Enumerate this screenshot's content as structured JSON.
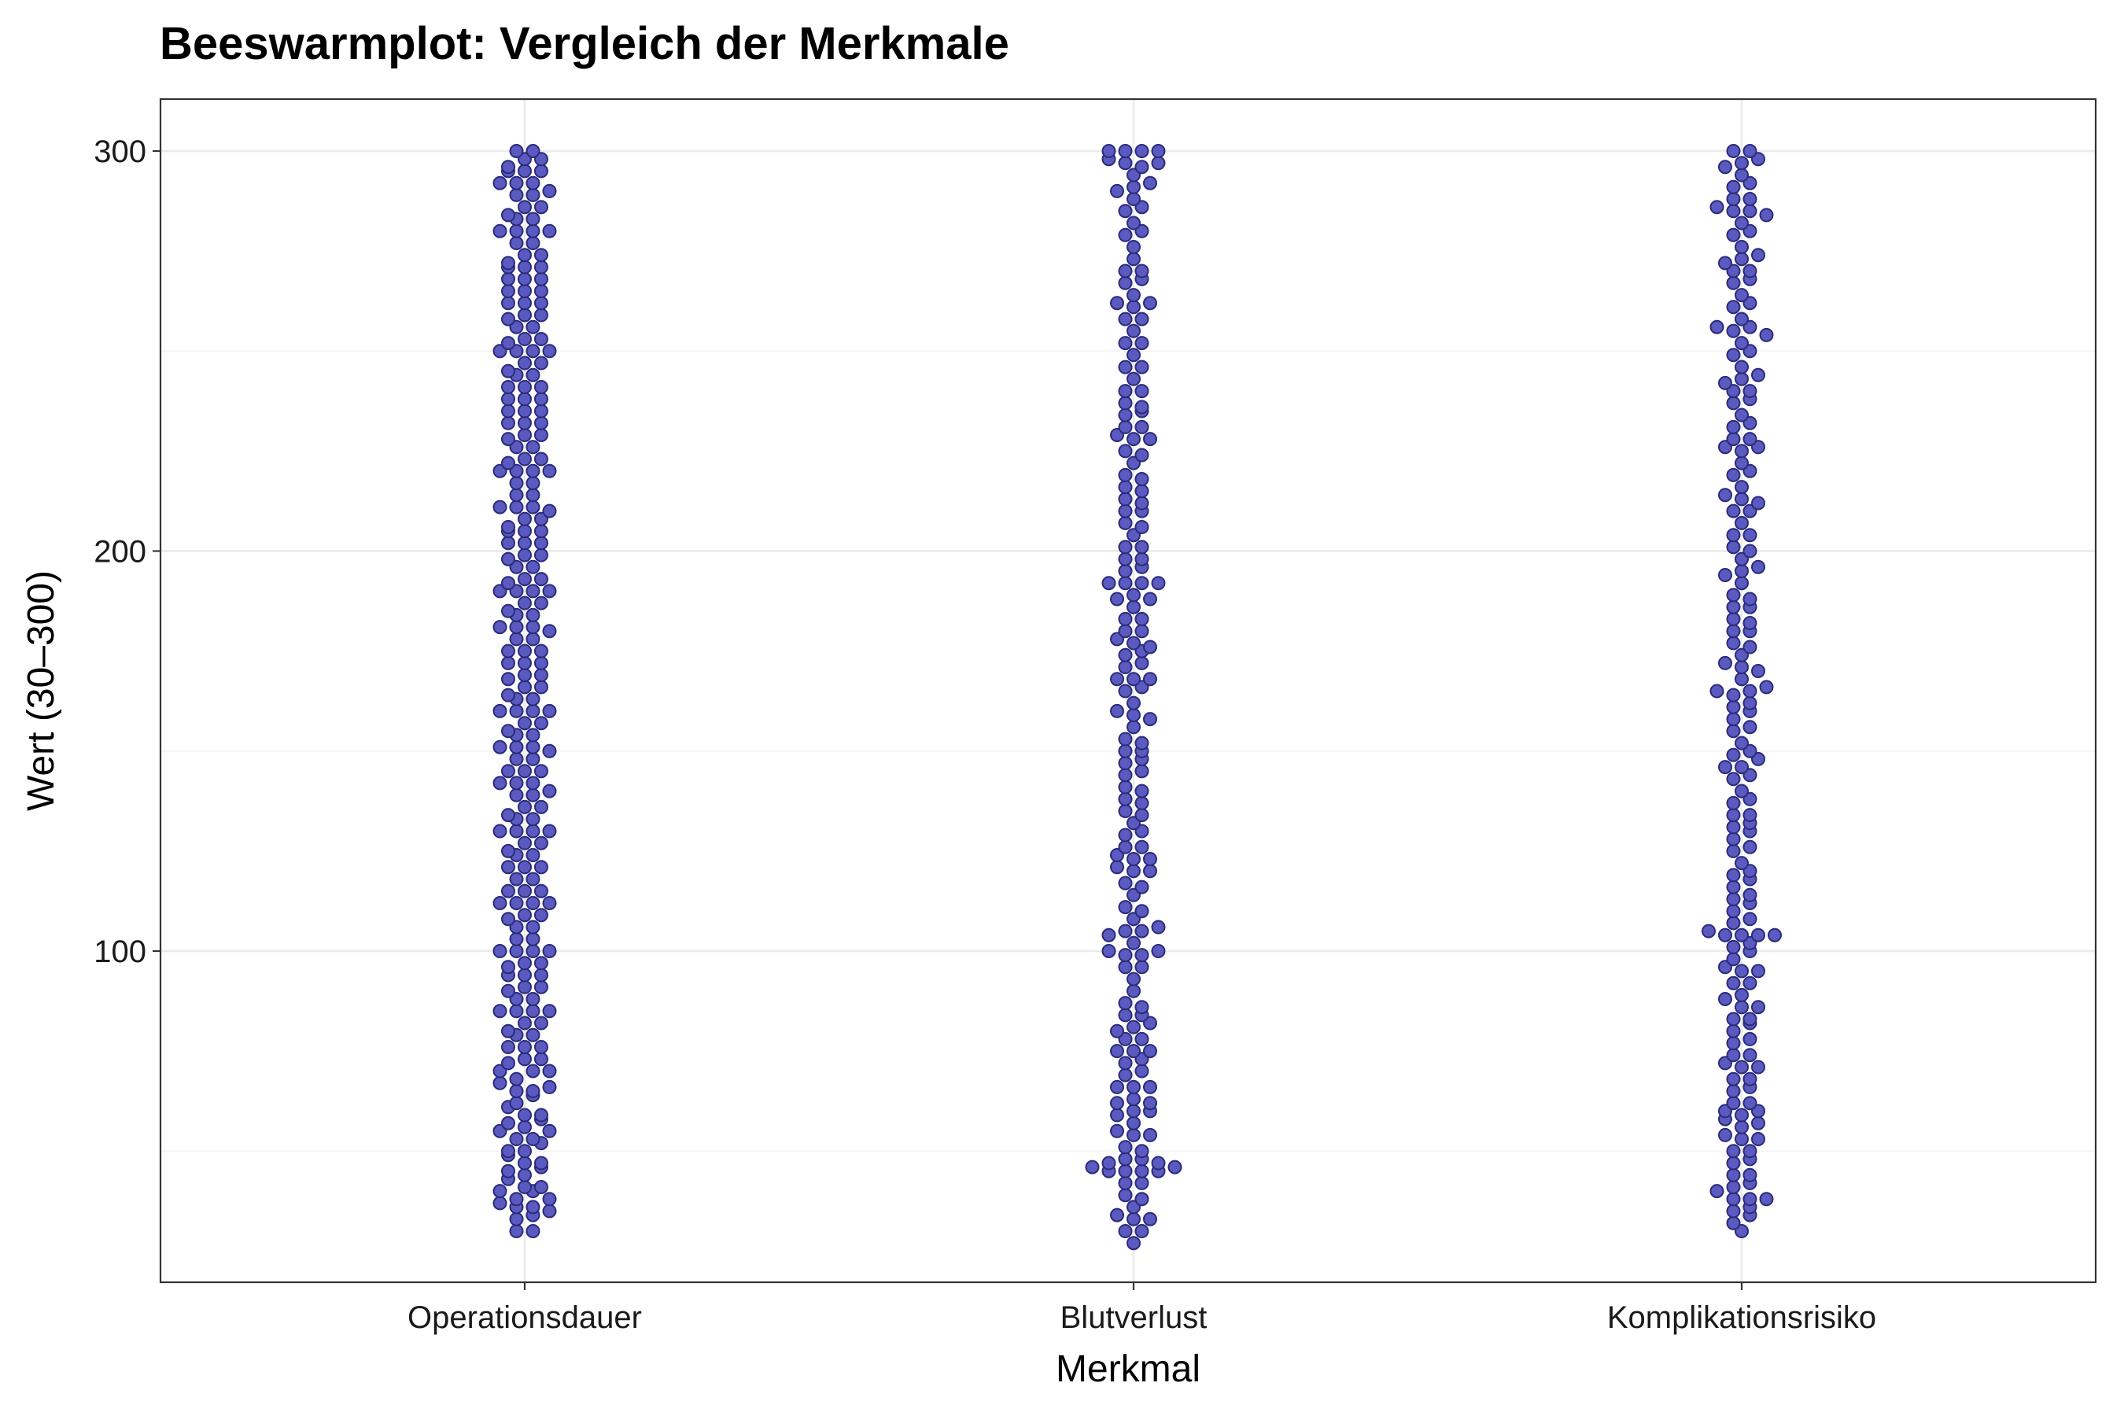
{
  "chart_data": {
    "type": "scatter",
    "subtype": "beeswarm",
    "title": "Beeswarmplot: Vergleich der Merkmale",
    "xlabel": "Merkmal",
    "ylabel": "Wert (30–300)",
    "categories": [
      "Operationsdauer",
      "Blutverlust",
      "Komplikationsrisiko"
    ],
    "ylim": [
      17,
      300
    ],
    "yticks": [
      100,
      200,
      300
    ],
    "grid": true,
    "legend": "none",
    "colors": {
      "point_fill": "#5a5ac0",
      "point_stroke": "#2b2b7a",
      "grid": "#ebebeb",
      "border": "#333333"
    },
    "point_spacing": 3,
    "series": [
      {
        "values": [
          30,
          33,
          36,
          36,
          38,
          41,
          41,
          44,
          47,
          47,
          50,
          53,
          53,
          56,
          59,
          59,
          62,
          65,
          65,
          68,
          70,
          73,
          76,
          76,
          79,
          82,
          85,
          85,
          88,
          91,
          94,
          94,
          97,
          100,
          100,
          103,
          106,
          109,
          112,
          112,
          115,
          118,
          121,
          121,
          124,
          127,
          130,
          130,
          133,
          136,
          139,
          142,
          142,
          145,
          148,
          151,
          151,
          154,
          157,
          160,
          160,
          163,
          166,
          169,
          172,
          172,
          175,
          178,
          181,
          181,
          184,
          187,
          190,
          190,
          193,
          196,
          199,
          202,
          202,
          205,
          208,
          211,
          211,
          214,
          217,
          220,
          220,
          223,
          226,
          229,
          232,
          232,
          235,
          238,
          241,
          241,
          244,
          247,
          250,
          250,
          253,
          256,
          259,
          262,
          262,
          265,
          268,
          271,
          271,
          274,
          277,
          280,
          280,
          283,
          286,
          289,
          292,
          292,
          295,
          298,
          300,
          300,
          30,
          34,
          37,
          40,
          40,
          43,
          46,
          49,
          52,
          55,
          55,
          58,
          61,
          64,
          67,
          70,
          70,
          73,
          76,
          79,
          82,
          85,
          85,
          88,
          91,
          94,
          97,
          100,
          100,
          103,
          106,
          109,
          112,
          115,
          115,
          118,
          121,
          124,
          127,
          130,
          130,
          133,
          136,
          139,
          142,
          145,
          145,
          148,
          151,
          154,
          157,
          160,
          160,
          163,
          166,
          169,
          172,
          175,
          175,
          178,
          181,
          184,
          187,
          190,
          190,
          193,
          196,
          199,
          202,
          205,
          205,
          208,
          211,
          214,
          217,
          220,
          220,
          223,
          226,
          229,
          232,
          235,
          235,
          238,
          241,
          244,
          247,
          250,
          250,
          253,
          256,
          259,
          262,
          265,
          265,
          268,
          271,
          274,
          277,
          280,
          280,
          283,
          286,
          289,
          292,
          295,
          295,
          298,
          35,
          45,
          57,
          72,
          90,
          108,
          125,
          140,
          155,
          168,
          185,
          198,
          210,
          228,
          245,
          258,
          272,
          290,
          38,
          50,
          66,
          80,
          96,
          112,
          134,
          150,
          164,
          180,
          192,
          206,
          222,
          238,
          252,
          268,
          284,
          296
        ]
      },
      {
        "values": [
          27,
          30,
          33,
          33,
          36,
          39,
          42,
          42,
          45,
          45,
          48,
          48,
          51,
          54,
          54,
          57,
          60,
          60,
          63,
          66,
          66,
          69,
          72,
          75,
          75,
          78,
          81,
          84,
          84,
          87,
          90,
          93,
          96,
          99,
          99,
          102,
          105,
          105,
          108,
          111,
          114,
          117,
          120,
          120,
          123,
          126,
          126,
          129,
          132,
          135,
          138,
          141,
          144,
          147,
          150,
          150,
          153,
          156,
          159,
          162,
          165,
          168,
          168,
          171,
          174,
          177,
          180,
          180,
          183,
          186,
          189,
          192,
          192,
          195,
          198,
          201,
          204,
          207,
          210,
          210,
          213,
          216,
          219,
          222,
          225,
          228,
          228,
          231,
          234,
          237,
          240,
          243,
          246,
          249,
          252,
          255,
          258,
          261,
          264,
          267,
          270,
          273,
          276,
          279,
          282,
          285,
          288,
          291,
          294,
          297,
          300,
          300,
          30,
          34,
          38,
          45,
          45,
          46,
          46,
          50,
          55,
          59,
          62,
          66,
          70,
          73,
          78,
          82,
          86,
          96,
          100,
          104,
          106,
          110,
          116,
          121,
          123,
          130,
          134,
          140,
          145,
          148,
          152,
          158,
          166,
          168,
          172,
          176,
          178,
          183,
          188,
          192,
          192,
          196,
          201,
          206,
          212,
          218,
          224,
          229,
          231,
          236,
          240,
          246,
          252,
          258,
          262,
          268,
          270,
          280,
          286,
          292,
          296,
          298,
          300,
          300,
          47,
          47,
          62,
          75,
          80,
          100,
          124,
          137,
          160,
          175,
          188,
          198,
          215,
          235,
          262,
          290,
          297
        ]
      },
      {
        "values": [
          32,
          35,
          38,
          38,
          41,
          44,
          44,
          47,
          50,
          53,
          53,
          56,
          59,
          62,
          62,
          65,
          68,
          71,
          71,
          74,
          77,
          80,
          83,
          83,
          86,
          89,
          92,
          95,
          95,
          98,
          101,
          104,
          104,
          104,
          104,
          107,
          110,
          113,
          116,
          119,
          122,
          125,
          128,
          131,
          134,
          137,
          140,
          143,
          146,
          149,
          152,
          155,
          158,
          161,
          164,
          165,
          165,
          168,
          171,
          174,
          177,
          180,
          183,
          186,
          189,
          192,
          195,
          198,
          201,
          204,
          207,
          210,
          213,
          216,
          219,
          222,
          225,
          228,
          231,
          234,
          237,
          240,
          243,
          246,
          249,
          252,
          255,
          258,
          261,
          264,
          267,
          270,
          273,
          276,
          279,
          282,
          285,
          285,
          288,
          291,
          294,
          297,
          300,
          300,
          30,
          36,
          40,
          42,
          50,
          57,
          58,
          60,
          66,
          74,
          78,
          86,
          92,
          100,
          105,
          108,
          114,
          120,
          126,
          132,
          138,
          144,
          150,
          156,
          162,
          170,
          176,
          182,
          188,
          196,
          204,
          212,
          220,
          226,
          232,
          238,
          244,
          250,
          256,
          262,
          268,
          274,
          280,
          286,
          292,
          298,
          34,
          48,
          60,
          72,
          88,
          102,
          118,
          134,
          148,
          160,
          172,
          186,
          200,
          214,
          228,
          242,
          256,
          270,
          284,
          296,
          38,
          54,
          68,
          82,
          96,
          112,
          130,
          146,
          166,
          180,
          194,
          210,
          226,
          240,
          254,
          272,
          288
        ]
      }
    ]
  }
}
